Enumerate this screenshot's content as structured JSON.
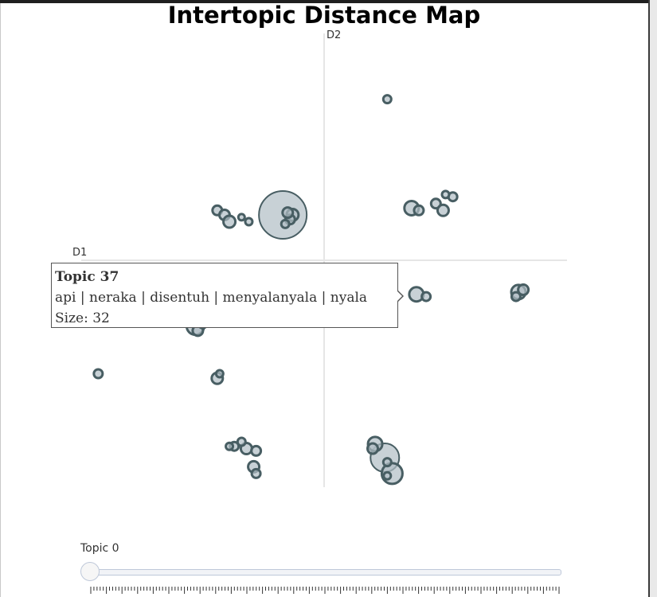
{
  "chart_data": {
    "type": "scatter",
    "title": "Intertopic Distance Map",
    "xlabel": "D1",
    "ylabel": "D2",
    "xlim": [
      -10,
      10
    ],
    "ylim": [
      -10,
      10
    ],
    "grid": false,
    "marker_fill": "#b0bec5",
    "marker_stroke": "#485e63",
    "points": [
      {
        "x": 2.6,
        "y": 7.1,
        "size": 10
      },
      {
        "x": -1.7,
        "y": 2.0,
        "size": 60
      },
      {
        "x": -1.3,
        "y": 2.0,
        "size": 15
      },
      {
        "x": -1.4,
        "y": 1.8,
        "size": 12
      },
      {
        "x": -1.5,
        "y": 2.1,
        "size": 13
      },
      {
        "x": -1.6,
        "y": 1.6,
        "size": 10
      },
      {
        "x": -4.4,
        "y": 2.2,
        "size": 12
      },
      {
        "x": -4.1,
        "y": 2.0,
        "size": 13
      },
      {
        "x": -3.9,
        "y": 1.7,
        "size": 15
      },
      {
        "x": -3.1,
        "y": 1.7,
        "size": 9
      },
      {
        "x": -3.4,
        "y": 1.9,
        "size": 8
      },
      {
        "x": 3.6,
        "y": 2.3,
        "size": 18
      },
      {
        "x": 3.9,
        "y": 2.2,
        "size": 12
      },
      {
        "x": 4.6,
        "y": 2.5,
        "size": 12
      },
      {
        "x": 4.9,
        "y": 2.2,
        "size": 14
      },
      {
        "x": 5.3,
        "y": 2.8,
        "size": 11
      },
      {
        "x": 5.0,
        "y": 2.9,
        "size": 9
      },
      {
        "x": 3.8,
        "y": -1.5,
        "size": 18
      },
      {
        "x": 4.2,
        "y": -1.6,
        "size": 11
      },
      {
        "x": 8.0,
        "y": -1.4,
        "size": 18
      },
      {
        "x": 8.2,
        "y": -1.3,
        "size": 13
      },
      {
        "x": 7.9,
        "y": -1.6,
        "size": 11
      },
      {
        "x": -5.3,
        "y": -2.9,
        "size": 22
      },
      {
        "x": -5.2,
        "y": -3.1,
        "size": 13
      },
      {
        "x": -5.0,
        "y": -2.8,
        "size": 11
      },
      {
        "x": -9.3,
        "y": -5.0,
        "size": 11
      },
      {
        "x": -4.4,
        "y": -5.2,
        "size": 14
      },
      {
        "x": -4.3,
        "y": -5.0,
        "size": 9
      },
      {
        "x": 2.5,
        "y": -8.7,
        "size": 36
      },
      {
        "x": 2.8,
        "y": -9.4,
        "size": 26
      },
      {
        "x": 2.1,
        "y": -8.1,
        "size": 18
      },
      {
        "x": 2.0,
        "y": -8.3,
        "size": 13
      },
      {
        "x": 2.6,
        "y": -8.9,
        "size": 10
      },
      {
        "x": 2.6,
        "y": -9.5,
        "size": 9
      },
      {
        "x": -3.7,
        "y": -8.2,
        "size": 11
      },
      {
        "x": -3.2,
        "y": -8.3,
        "size": 14
      },
      {
        "x": -2.8,
        "y": -8.4,
        "size": 12
      },
      {
        "x": -2.9,
        "y": -9.1,
        "size": 14
      },
      {
        "x": -2.8,
        "y": -9.4,
        "size": 11
      },
      {
        "x": -3.4,
        "y": -8.0,
        "size": 10
      },
      {
        "x": -3.9,
        "y": -8.2,
        "size": 9
      }
    ]
  },
  "tooltip": {
    "title": "Topic 37",
    "words": "api | neraka | disentuh | menyalanyala | nyala",
    "size": "Size: 32"
  },
  "slider": {
    "label": "Topic 0"
  }
}
